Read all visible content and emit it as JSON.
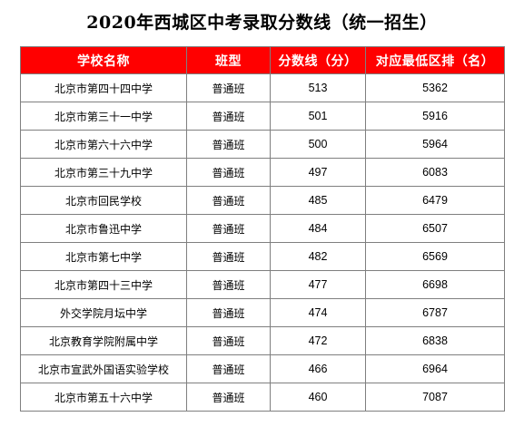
{
  "title": "2020年西城区中考录取分数线（统一招生）",
  "table": {
    "headers": [
      "学校名称",
      "班型",
      "分数线（分）",
      "对应最低区排（名）"
    ],
    "rows": [
      [
        "北京市第四十四中学",
        "普通班",
        "513",
        "5362"
      ],
      [
        "北京市第三十一中学",
        "普通班",
        "501",
        "5916"
      ],
      [
        "北京市第六十六中学",
        "普通班",
        "500",
        "5964"
      ],
      [
        "北京市第三十九中学",
        "普通班",
        "497",
        "6083"
      ],
      [
        "北京市回民学校",
        "普通班",
        "485",
        "6479"
      ],
      [
        "北京市鲁迅中学",
        "普通班",
        "484",
        "6507"
      ],
      [
        "北京市第七中学",
        "普通班",
        "482",
        "6569"
      ],
      [
        "北京市第四十三中学",
        "普通班",
        "477",
        "6698"
      ],
      [
        "外交学院月坛中学",
        "普通班",
        "474",
        "6787"
      ],
      [
        "北京教育学院附属中学",
        "普通班",
        "472",
        "6838"
      ],
      [
        "北京市宣武外国语实验学校",
        "普通班",
        "466",
        "6964"
      ],
      [
        "北京市第五十六中学",
        "普通班",
        "460",
        "7087"
      ]
    ]
  },
  "colors": {
    "header_bg": "#ff0000",
    "header_text": "#ffffff",
    "grid": "#7f7f7f"
  }
}
